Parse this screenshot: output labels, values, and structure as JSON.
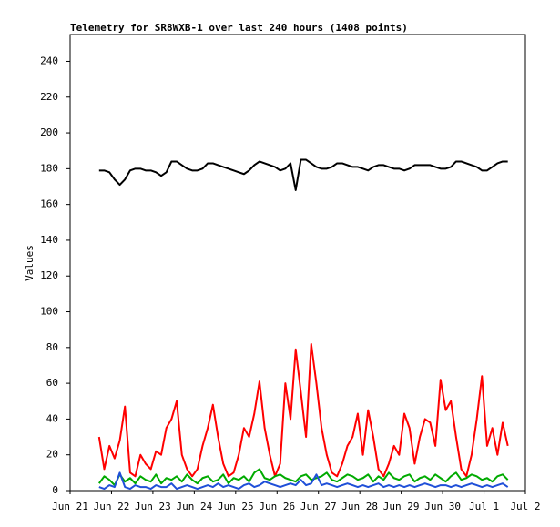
{
  "chart_data": {
    "type": "line",
    "title": "Telemetry for SR8WXB-1 over last 240 hours (1408 points)",
    "y_label": "Values",
    "x": [
      0.7,
      0.825,
      0.95,
      1.075,
      1.2,
      1.325,
      1.45,
      1.575,
      1.7,
      1.825,
      1.95,
      2.075,
      2.2,
      2.325,
      2.45,
      2.575,
      2.7,
      2.825,
      2.95,
      3.075,
      3.2,
      3.325,
      3.45,
      3.575,
      3.7,
      3.825,
      3.95,
      4.075,
      4.2,
      4.325,
      4.45,
      4.575,
      4.7,
      4.825,
      4.95,
      5.075,
      5.2,
      5.325,
      5.45,
      5.575,
      5.7,
      5.825,
      5.95,
      6.075,
      6.2,
      6.325,
      6.45,
      6.575,
      6.7,
      6.825,
      6.95,
      7.075,
      7.2,
      7.325,
      7.45,
      7.575,
      7.7,
      7.825,
      7.95,
      8.075,
      8.2,
      8.325,
      8.45,
      8.575,
      8.7,
      8.825,
      8.95,
      9.075,
      9.2,
      9.325,
      9.45,
      9.575,
      9.7,
      9.825,
      9.95,
      10.075,
      10.2,
      10.325,
      10.45,
      10.575
    ],
    "series": [
      {
        "color": "#000000",
        "values": [
          179,
          179,
          178,
          174,
          171,
          174,
          179,
          180,
          180,
          179,
          179,
          178,
          176,
          178,
          184,
          184,
          182,
          180,
          179,
          179,
          180,
          183,
          183,
          182,
          181,
          180,
          179,
          178,
          177,
          179,
          182,
          184,
          183,
          182,
          181,
          179,
          180,
          183,
          168,
          185,
          185,
          183,
          181,
          180,
          180,
          181,
          183,
          183,
          182,
          181,
          181,
          180,
          179,
          181,
          182,
          182,
          181,
          180,
          180,
          179,
          180,
          182,
          182,
          182,
          182,
          181,
          180,
          180,
          181,
          184,
          184,
          183,
          182,
          181,
          179,
          179,
          181,
          183,
          184,
          184
        ]
      },
      {
        "color": "#ff0000",
        "values": [
          30,
          12,
          25,
          18,
          28,
          47,
          10,
          8,
          20,
          15,
          12,
          22,
          20,
          35,
          40,
          50,
          20,
          12,
          8,
          12,
          25,
          35,
          48,
          30,
          15,
          8,
          10,
          20,
          35,
          30,
          43,
          61,
          35,
          20,
          8,
          15,
          60,
          40,
          79,
          55,
          30,
          82,
          60,
          35,
          20,
          10,
          8,
          15,
          25,
          30,
          43,
          20,
          45,
          30,
          12,
          8,
          15,
          25,
          20,
          43,
          35,
          15,
          30,
          40,
          38,
          25,
          62,
          45,
          50,
          30,
          12,
          8,
          20,
          40,
          64,
          25,
          35,
          20,
          38,
          25
        ]
      },
      {
        "color": "#00aa00",
        "values": [
          4,
          8,
          6,
          3,
          9,
          5,
          7,
          4,
          8,
          6,
          5,
          9,
          4,
          7,
          6,
          8,
          5,
          9,
          6,
          4,
          7,
          8,
          5,
          6,
          9,
          4,
          7,
          6,
          8,
          5,
          10,
          12,
          7,
          6,
          8,
          9,
          7,
          6,
          5,
          8,
          9,
          6,
          7,
          8,
          10,
          6,
          5,
          7,
          9,
          8,
          6,
          7,
          9,
          5,
          8,
          6,
          10,
          7,
          6,
          8,
          9,
          5,
          7,
          8,
          6,
          9,
          7,
          5,
          8,
          10,
          6,
          7,
          9,
          8,
          6,
          7,
          5,
          8,
          9,
          6
        ]
      },
      {
        "color": "#1f4fd8",
        "values": [
          2,
          1,
          3,
          2,
          10,
          2,
          1,
          3,
          2,
          2,
          1,
          3,
          2,
          2,
          4,
          1,
          2,
          3,
          2,
          1,
          2,
          3,
          2,
          4,
          2,
          3,
          2,
          1,
          3,
          4,
          2,
          3,
          5,
          4,
          3,
          2,
          3,
          4,
          3,
          6,
          3,
          4,
          9,
          3,
          4,
          3,
          2,
          3,
          4,
          3,
          2,
          3,
          2,
          3,
          4,
          2,
          3,
          2,
          3,
          2,
          3,
          2,
          3,
          4,
          3,
          2,
          3,
          3,
          2,
          3,
          2,
          3,
          4,
          3,
          2,
          3,
          2,
          3,
          4,
          2
        ]
      }
    ],
    "xlim": [
      0,
      11
    ],
    "xticks": [
      {
        "value": 0,
        "label": "Jun 21"
      },
      {
        "value": 1,
        "label": "Jun 22"
      },
      {
        "value": 2,
        "label": "Jun 23"
      },
      {
        "value": 3,
        "label": "Jun 24"
      },
      {
        "value": 4,
        "label": "Jun 25"
      },
      {
        "value": 5,
        "label": "Jun 26"
      },
      {
        "value": 6,
        "label": "Jun 27"
      },
      {
        "value": 7,
        "label": "Jun 28"
      },
      {
        "value": 8,
        "label": "Jun 29"
      },
      {
        "value": 9,
        "label": "Jun 30"
      },
      {
        "value": 10,
        "label": "Jul 1"
      },
      {
        "value": 11,
        "label": "Jul 2"
      }
    ],
    "ylim": [
      0,
      255
    ],
    "yticks": [
      0,
      20,
      40,
      60,
      80,
      100,
      120,
      140,
      160,
      180,
      200,
      220,
      240
    ],
    "grid": false
  }
}
